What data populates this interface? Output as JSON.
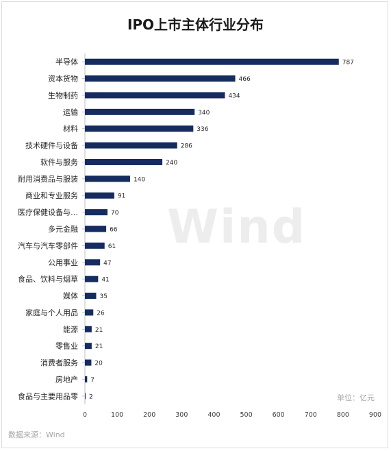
{
  "chart_data": {
    "type": "bar",
    "orientation": "horizontal",
    "title": "IPO上市主体行业分布",
    "unit_label": "单位：亿元",
    "source": "数据来源：Wind",
    "watermark": "Wind",
    "categories": [
      "半导体",
      "资本货物",
      "生物制药",
      "运输",
      "材料",
      "技术硬件与设备",
      "软件与服务",
      "耐用消费品与服装",
      "商业和专业服务",
      "医疗保健设备与…",
      "多元金融",
      "汽车与汽车零部件",
      "公用事业",
      "食品、饮料与烟草",
      "媒体",
      "家庭与个人用品",
      "能源",
      "零售业",
      "消费者服务",
      "房地产",
      "食品与主要用品零"
    ],
    "values": [
      787,
      466,
      434,
      340,
      336,
      286,
      240,
      140,
      91,
      70,
      66,
      61,
      47,
      41,
      35,
      26,
      21,
      21,
      20,
      7,
      2
    ],
    "x_ticks": [
      0,
      100,
      200,
      300,
      400,
      500,
      600,
      700,
      800,
      900
    ],
    "xlim": [
      0,
      900
    ],
    "bar_color": "#162c5e",
    "grid": false,
    "legend": "none"
  }
}
